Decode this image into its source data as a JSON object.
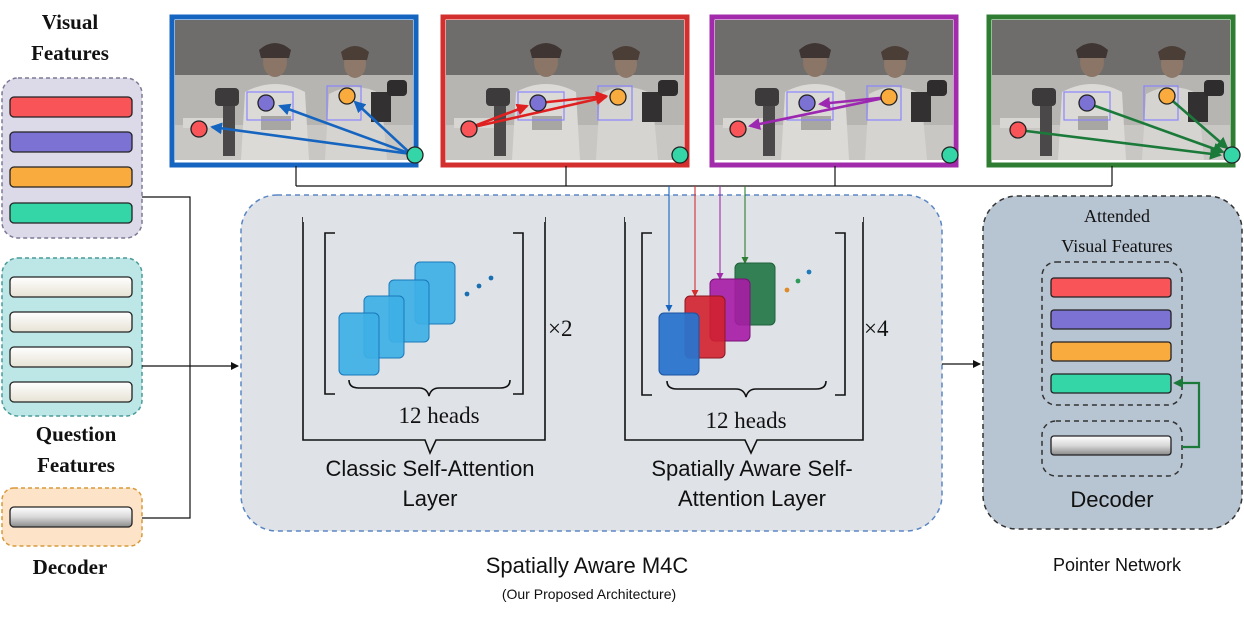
{
  "inputs": {
    "visual_title": "Visual Features",
    "question_title": "Question Features",
    "decoder_title": "Decoder"
  },
  "feature_colors": {
    "red": "#f95457",
    "purple": "#7b72d4",
    "orange": "#f9ab3d",
    "teal": "#34d6a8",
    "blue_frame": "#1565c0",
    "red_frame": "#d32f2f",
    "purple_frame": "#a22bab",
    "green_frame": "#2e7d32"
  },
  "layers": {
    "classic": {
      "heads_label": "12 heads",
      "repeat_label": "×2",
      "title": "Classic Self-Attention Layer"
    },
    "spatial": {
      "heads_label": "12 heads",
      "repeat_label": "×4",
      "title": "Spatially Aware Self-Attention Layer"
    }
  },
  "model": {
    "name": "Spatially Aware M4C",
    "subtitle": "(Our Proposed Architecture)"
  },
  "pointer": {
    "attended_label": "Attended Visual Features",
    "decoder_label": "Decoder",
    "caption": "Pointer Network"
  },
  "frames": [
    {
      "name": "frame-blue",
      "color": "#1565c0"
    },
    {
      "name": "frame-red",
      "color": "#d32f2f"
    },
    {
      "name": "frame-purple",
      "color": "#a22bab"
    },
    {
      "name": "frame-green",
      "color": "#2e7d32"
    }
  ]
}
